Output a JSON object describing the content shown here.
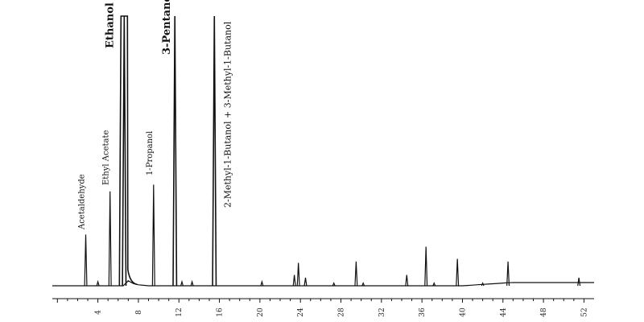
{
  "chart_data": {
    "type": "line",
    "title": "",
    "xlabel": "",
    "ylabel": "",
    "grid": false,
    "xlim": [
      -0.5,
      53
    ],
    "ylim": [
      0,
      100
    ],
    "x_ticks": [
      4,
      8,
      12,
      16,
      20,
      24,
      28,
      32,
      36,
      40,
      44,
      48,
      52
    ],
    "x_tick_labels": [
      "4",
      "8",
      "12",
      "16",
      "20",
      "24",
      "28",
      "32",
      "36",
      "40",
      "44",
      "48",
      "52"
    ],
    "peaks": [
      {
        "name": "Acetaldehyde",
        "x": 2.8,
        "height": 19,
        "labeled": true,
        "bold": false
      },
      {
        "name": "",
        "x": 4.0,
        "height": 1.5,
        "labeled": false
      },
      {
        "name": "Ethyl Acetate",
        "x": 5.2,
        "height": 35,
        "labeled": true,
        "bold": false
      },
      {
        "name": "Ethanol",
        "x": 6.6,
        "height": 100,
        "labeled": true,
        "bold": true
      },
      {
        "name": "1-Propanol",
        "x": 9.5,
        "height": 37.5,
        "labeled": true,
        "bold": false
      },
      {
        "name": "",
        "x": 12.3,
        "height": 1.5,
        "labeled": false
      },
      {
        "name": "",
        "x": 13.3,
        "height": 1.5,
        "labeled": false
      },
      {
        "name": "3-Pentanol",
        "x": 11.6,
        "height": 100,
        "labeled": true,
        "bold": true
      },
      {
        "name": "2-Methyl-1-Butanol + 3-Methyl-1-Butanol",
        "x": 15.5,
        "height": 100,
        "labeled": true,
        "bold": false
      },
      {
        "name": "",
        "x": 20.2,
        "height": 1.5,
        "labeled": false
      },
      {
        "name": "",
        "x": 23.4,
        "height": 4,
        "labeled": false
      },
      {
        "name": "",
        "x": 23.8,
        "height": 8.5,
        "labeled": false
      },
      {
        "name": "",
        "x": 24.5,
        "height": 3,
        "labeled": false
      },
      {
        "name": "",
        "x": 27.3,
        "height": 1,
        "labeled": false
      },
      {
        "name": "",
        "x": 29.5,
        "height": 9,
        "labeled": false
      },
      {
        "name": "",
        "x": 30.2,
        "height": 1,
        "labeled": false
      },
      {
        "name": "",
        "x": 34.5,
        "height": 4,
        "labeled": false
      },
      {
        "name": "",
        "x": 36.4,
        "height": 14.5,
        "labeled": false
      },
      {
        "name": "",
        "x": 37.2,
        "height": 1,
        "labeled": false
      },
      {
        "name": "",
        "x": 39.5,
        "height": 10,
        "labeled": false
      },
      {
        "name": "",
        "x": 42.0,
        "height": 1,
        "labeled": false
      },
      {
        "name": "",
        "x": 44.5,
        "height": 9,
        "labeled": false
      },
      {
        "name": "",
        "x": 51.5,
        "height": 3,
        "labeled": false
      }
    ]
  }
}
